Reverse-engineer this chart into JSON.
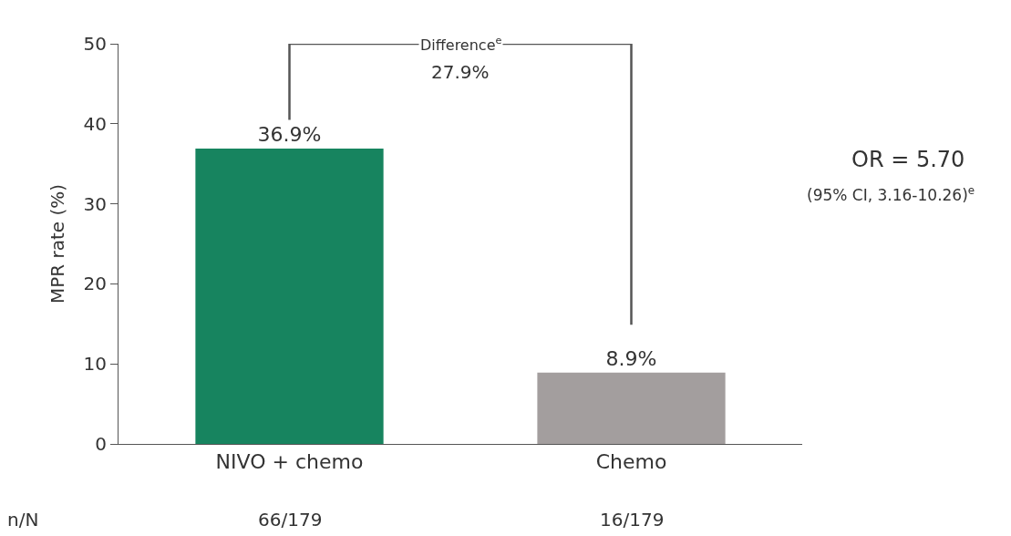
{
  "chart_data": {
    "type": "bar",
    "ylabel": "MPR rate (%)",
    "categories": [
      "NIVO + chemo",
      "Chemo"
    ],
    "values": [
      36.9,
      8.9
    ],
    "colors": [
      "#17845f",
      "#a39e9e"
    ],
    "value_labels": [
      "36.9%",
      "8.9%"
    ],
    "ylim": [
      0,
      50
    ],
    "yticks": [
      0,
      10,
      20,
      30,
      40,
      50
    ],
    "legend": false,
    "annotations": [
      "Difference$^{e}$",
      "27.9%",
      "OR = 5.70",
      "(95% CI, 3.16-10.26)$^{e}$",
      "n/N",
      "66/179",
      "16/179"
    ]
  }
}
